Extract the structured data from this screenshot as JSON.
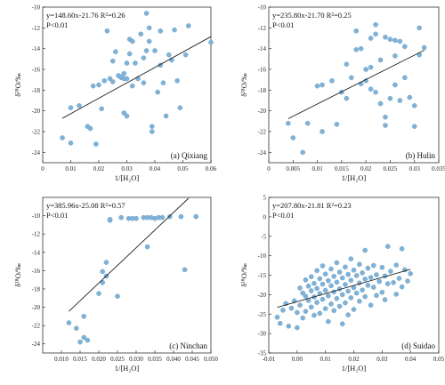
{
  "chart_data": [
    {
      "type": "scatter",
      "panel_label": "(a) Qixiang",
      "equation": "y=148.60x-21.76 R²=0.26",
      "p_value": "P<0.01",
      "xlabel": "1/[H₂O]",
      "ylabel": "δ¹⁸O/‰",
      "xlim": [
        0.0,
        0.06
      ],
      "ylim": [
        -25,
        -10
      ],
      "xticks": [
        "0",
        "0.01",
        "0.02",
        "0.03",
        "0.04",
        "0.05",
        "0.06"
      ],
      "yticks": [
        "-24",
        "-22",
        "-20",
        "-18",
        "-16",
        "-14",
        "-12",
        "-10"
      ],
      "fit": {
        "slope": 148.6,
        "intercept": -21.76,
        "x_range": [
          0.007,
          0.061
        ]
      },
      "points": [
        [
          0.007,
          -22.6
        ],
        [
          0.01,
          -23.1
        ],
        [
          0.01,
          -19.7
        ],
        [
          0.013,
          -19.5
        ],
        [
          0.016,
          -21.5
        ],
        [
          0.017,
          -21.7
        ],
        [
          0.018,
          -17.6
        ],
        [
          0.019,
          -23.2
        ],
        [
          0.02,
          -17.5
        ],
        [
          0.021,
          -19.8
        ],
        [
          0.022,
          -17.1
        ],
        [
          0.023,
          -12.3
        ],
        [
          0.024,
          -16.9
        ],
        [
          0.025,
          -17.2
        ],
        [
          0.025,
          -15.2
        ],
        [
          0.026,
          -14.3
        ],
        [
          0.027,
          -16.6
        ],
        [
          0.028,
          -16.8
        ],
        [
          0.028,
          -16.7
        ],
        [
          0.029,
          -20.2
        ],
        [
          0.029,
          -16.4
        ],
        [
          0.029,
          -16.9
        ],
        [
          0.03,
          -20.5
        ],
        [
          0.03,
          -16.9
        ],
        [
          0.03,
          -15.4
        ],
        [
          0.031,
          -13.1
        ],
        [
          0.031,
          -14.5
        ],
        [
          0.032,
          -13.3
        ],
        [
          0.032,
          -17.6
        ],
        [
          0.033,
          -15.4
        ],
        [
          0.034,
          -16.9
        ],
        [
          0.035,
          -12.6
        ],
        [
          0.036,
          -17.3
        ],
        [
          0.036,
          -14.9
        ],
        [
          0.037,
          -14.2
        ],
        [
          0.037,
          -10.6
        ],
        [
          0.038,
          -13.3
        ],
        [
          0.038,
          -12.0
        ],
        [
          0.039,
          -21.5
        ],
        [
          0.039,
          -22.0
        ],
        [
          0.04,
          -14.2
        ],
        [
          0.041,
          -18.2
        ],
        [
          0.042,
          -12.3
        ],
        [
          0.042,
          -15.6
        ],
        [
          0.043,
          -17.3
        ],
        [
          0.044,
          -20.5
        ],
        [
          0.045,
          -14.6
        ],
        [
          0.046,
          -15.1
        ],
        [
          0.047,
          -12.2
        ],
        [
          0.048,
          -17.1
        ],
        [
          0.049,
          -19.7
        ],
        [
          0.051,
          -14.6
        ],
        [
          0.052,
          -11.8
        ],
        [
          0.06,
          -13.4
        ]
      ]
    },
    {
      "type": "scatter",
      "panel_label": "(b) Hulin",
      "equation": "y=235.80x-21.70 R²=0.25",
      "p_value": "P<0.01",
      "xlabel": "1/[H₂O]",
      "ylabel": "δ¹⁸O/‰",
      "xlim": [
        0.0,
        0.035
      ],
      "ylim": [
        -25,
        -10
      ],
      "xticks": [
        "0",
        "0.005",
        "0.01",
        "0.015",
        "0.02",
        "0.025",
        "0.03",
        "0.035"
      ],
      "yticks": [
        "-24",
        "-22",
        "-20",
        "-18",
        "-16",
        "-14",
        "-12",
        "-10"
      ],
      "fit": {
        "slope": 235.8,
        "intercept": -21.7,
        "x_range": [
          0.004,
          0.032
        ]
      },
      "points": [
        [
          0.004,
          -21.2
        ],
        [
          0.005,
          -22.6
        ],
        [
          0.007,
          -24.0
        ],
        [
          0.008,
          -21.2
        ],
        [
          0.01,
          -17.6
        ],
        [
          0.011,
          -17.5
        ],
        [
          0.011,
          -22.0
        ],
        [
          0.013,
          -17.1
        ],
        [
          0.014,
          -21.3
        ],
        [
          0.015,
          -18.2
        ],
        [
          0.016,
          -15.5
        ],
        [
          0.016,
          -18.8
        ],
        [
          0.017,
          -16.8
        ],
        [
          0.018,
          -14.1
        ],
        [
          0.018,
          -12.3
        ],
        [
          0.019,
          -17.4
        ],
        [
          0.019,
          -14.0
        ],
        [
          0.02,
          -16.0
        ],
        [
          0.02,
          -17.1
        ],
        [
          0.021,
          -15.8
        ],
        [
          0.021,
          -13.0
        ],
        [
          0.021,
          -17.9
        ],
        [
          0.022,
          -11.7
        ],
        [
          0.022,
          -12.6
        ],
        [
          0.022,
          -18.2
        ],
        [
          0.023,
          -15.1
        ],
        [
          0.023,
          -19.3
        ],
        [
          0.024,
          -12.9
        ],
        [
          0.024,
          -20.6
        ],
        [
          0.024,
          -21.4
        ],
        [
          0.025,
          -13.1
        ],
        [
          0.025,
          -18.8
        ],
        [
          0.026,
          -13.2
        ],
        [
          0.026,
          -17.5
        ],
        [
          0.026,
          -14.7
        ],
        [
          0.027,
          -13.3
        ],
        [
          0.027,
          -19.0
        ],
        [
          0.028,
          -16.8
        ],
        [
          0.028,
          -13.8
        ],
        [
          0.029,
          -18.7
        ],
        [
          0.03,
          -19.5
        ],
        [
          0.03,
          -21.5
        ],
        [
          0.031,
          -12.0
        ],
        [
          0.031,
          -14.6
        ],
        [
          0.032,
          -13.9
        ]
      ]
    },
    {
      "type": "scatter",
      "panel_label": "(c) Ninchan",
      "equation": "y=385.96x-25.08 R²=0.57",
      "p_value": "P<0.01",
      "xlabel": "1/[H₂O]",
      "ylabel": "δ¹⁸O/‰",
      "xlim": [
        0.005,
        0.05
      ],
      "ylim": [
        -25,
        -8
      ],
      "xticks": [
        "0.010",
        "0.015",
        "0.020",
        "0.025",
        "0.030",
        "0.035",
        "0.040",
        "0.045",
        "0.050"
      ],
      "yticks": [
        "-24",
        "-22",
        "-20",
        "-18",
        "-16",
        "-14",
        "-12",
        "-10"
      ],
      "fit": {
        "slope": 385.96,
        "intercept": -25.08,
        "x_range": [
          0.012,
          0.044
        ]
      },
      "points": [
        [
          0.012,
          -21.7
        ],
        [
          0.014,
          -22.3
        ],
        [
          0.015,
          -23.8
        ],
        [
          0.016,
          -21.0
        ],
        [
          0.016,
          -23.3
        ],
        [
          0.017,
          -23.6
        ],
        [
          0.02,
          -18.5
        ],
        [
          0.021,
          -16.1
        ],
        [
          0.021,
          -17.3
        ],
        [
          0.022,
          -15.1
        ],
        [
          0.022,
          -16.6
        ],
        [
          0.023,
          -10.5
        ],
        [
          0.023,
          -10.4
        ],
        [
          0.025,
          -18.8
        ],
        [
          0.026,
          -10.2
        ],
        [
          0.028,
          -10.3
        ],
        [
          0.029,
          -10.3
        ],
        [
          0.03,
          -10.3
        ],
        [
          0.032,
          -10.2
        ],
        [
          0.033,
          -10.2
        ],
        [
          0.033,
          -13.4
        ],
        [
          0.034,
          -10.2
        ],
        [
          0.035,
          -10.3
        ],
        [
          0.036,
          -10.2
        ],
        [
          0.037,
          -10.2
        ],
        [
          0.039,
          -10.1
        ],
        [
          0.042,
          -10.1
        ],
        [
          0.043,
          -15.9
        ],
        [
          0.046,
          -10.1
        ]
      ]
    },
    {
      "type": "scatter",
      "panel_label": "(d) Suidao",
      "equation": "y=207.80x-21.81 R²=0.23",
      "p_value": "P<0.01",
      "xlabel": "1/[H₂O]",
      "ylabel": "δ¹⁸O/‰",
      "xlim": [
        -0.01,
        0.05
      ],
      "ylim": [
        -35,
        5
      ],
      "xticks": [
        "-0.01",
        "0.00",
        "0.01",
        "0.02",
        "0.03",
        "0.04",
        "0.05"
      ],
      "yticks": [
        "-35",
        "-30",
        "-25",
        "-20",
        "-15",
        "-10",
        "-5",
        "0",
        "5"
      ],
      "fit": {
        "slope": 207.8,
        "intercept": -21.81,
        "x_range": [
          -0.007,
          0.04
        ]
      },
      "points": [
        [
          -0.007,
          -25.8
        ],
        [
          -0.006,
          -27.4
        ],
        [
          -0.005,
          -24.0
        ],
        [
          -0.004,
          -22.3
        ],
        [
          -0.003,
          -28.1
        ],
        [
          -0.002,
          -23.5
        ],
        [
          -0.001,
          -21.6
        ],
        [
          0.0,
          -28.5
        ],
        [
          0.0,
          -24.6
        ],
        [
          0.001,
          -18.3
        ],
        [
          0.001,
          -22.7
        ],
        [
          0.002,
          -19.6
        ],
        [
          0.002,
          -26.0
        ],
        [
          0.003,
          -16.2
        ],
        [
          0.003,
          -20.4
        ],
        [
          0.003,
          -24.3
        ],
        [
          0.004,
          -17.8
        ],
        [
          0.004,
          -21.5
        ],
        [
          0.005,
          -15.4
        ],
        [
          0.005,
          -19.0
        ],
        [
          0.005,
          -23.2
        ],
        [
          0.006,
          -17.1
        ],
        [
          0.006,
          -20.6
        ],
        [
          0.006,
          -25.3
        ],
        [
          0.007,
          -13.8
        ],
        [
          0.007,
          -18.4
        ],
        [
          0.007,
          -22.0
        ],
        [
          0.008,
          -15.9
        ],
        [
          0.008,
          -19.7
        ],
        [
          0.008,
          -24.8
        ],
        [
          0.009,
          -12.6
        ],
        [
          0.009,
          -17.3
        ],
        [
          0.009,
          -21.2
        ],
        [
          0.01,
          -14.7
        ],
        [
          0.01,
          -18.9
        ],
        [
          0.01,
          -23.6
        ],
        [
          0.011,
          -16.4
        ],
        [
          0.011,
          -20.3
        ],
        [
          0.011,
          -26.9
        ],
        [
          0.012,
          -13.4
        ],
        [
          0.012,
          -17.7
        ],
        [
          0.012,
          -22.4
        ],
        [
          0.013,
          -15.3
        ],
        [
          0.013,
          -19.3
        ],
        [
          0.013,
          -24.1
        ],
        [
          0.014,
          -11.8
        ],
        [
          0.014,
          -16.8
        ],
        [
          0.014,
          -21.0
        ],
        [
          0.015,
          -14.2
        ],
        [
          0.015,
          -18.5
        ],
        [
          0.015,
          -23.0
        ],
        [
          0.016,
          -15.7
        ],
        [
          0.016,
          -20.0
        ],
        [
          0.016,
          -27.5
        ],
        [
          0.017,
          -12.9
        ],
        [
          0.017,
          -17.4
        ],
        [
          0.017,
          -22.1
        ],
        [
          0.018,
          -14.8
        ],
        [
          0.018,
          -19.1
        ],
        [
          0.018,
          -25.2
        ],
        [
          0.019,
          -10.8
        ],
        [
          0.019,
          -16.3
        ],
        [
          0.019,
          -20.8
        ],
        [
          0.02,
          -13.7
        ],
        [
          0.02,
          -18.2
        ],
        [
          0.02,
          -23.8
        ],
        [
          0.021,
          -15.1
        ],
        [
          0.021,
          -19.6
        ],
        [
          0.022,
          -12.2
        ],
        [
          0.022,
          -17.0
        ],
        [
          0.022,
          -21.7
        ],
        [
          0.023,
          -14.4
        ],
        [
          0.023,
          -18.8
        ],
        [
          0.024,
          -8.6
        ],
        [
          0.024,
          -16.0
        ],
        [
          0.024,
          -20.5
        ],
        [
          0.025,
          -13.2
        ],
        [
          0.025,
          -17.6
        ],
        [
          0.026,
          -15.6
        ],
        [
          0.026,
          -22.7
        ],
        [
          0.027,
          -12.5
        ],
        [
          0.027,
          -18.1
        ],
        [
          0.028,
          -14.9
        ],
        [
          0.028,
          -20.2
        ],
        [
          0.029,
          -16.6
        ],
        [
          0.03,
          -13.0
        ],
        [
          0.03,
          -19.4
        ],
        [
          0.031,
          -15.2
        ],
        [
          0.031,
          -21.3
        ],
        [
          0.032,
          -7.6
        ],
        [
          0.032,
          -17.2
        ],
        [
          0.033,
          -14.0
        ],
        [
          0.034,
          -16.9
        ],
        [
          0.035,
          -12.4
        ],
        [
          0.035,
          -19.9
        ],
        [
          0.036,
          -15.8
        ],
        [
          0.037,
          -8.2
        ],
        [
          0.037,
          -18.0
        ],
        [
          0.038,
          -13.6
        ],
        [
          0.039,
          -16.5
        ],
        [
          0.04,
          -14.6
        ]
      ]
    }
  ]
}
